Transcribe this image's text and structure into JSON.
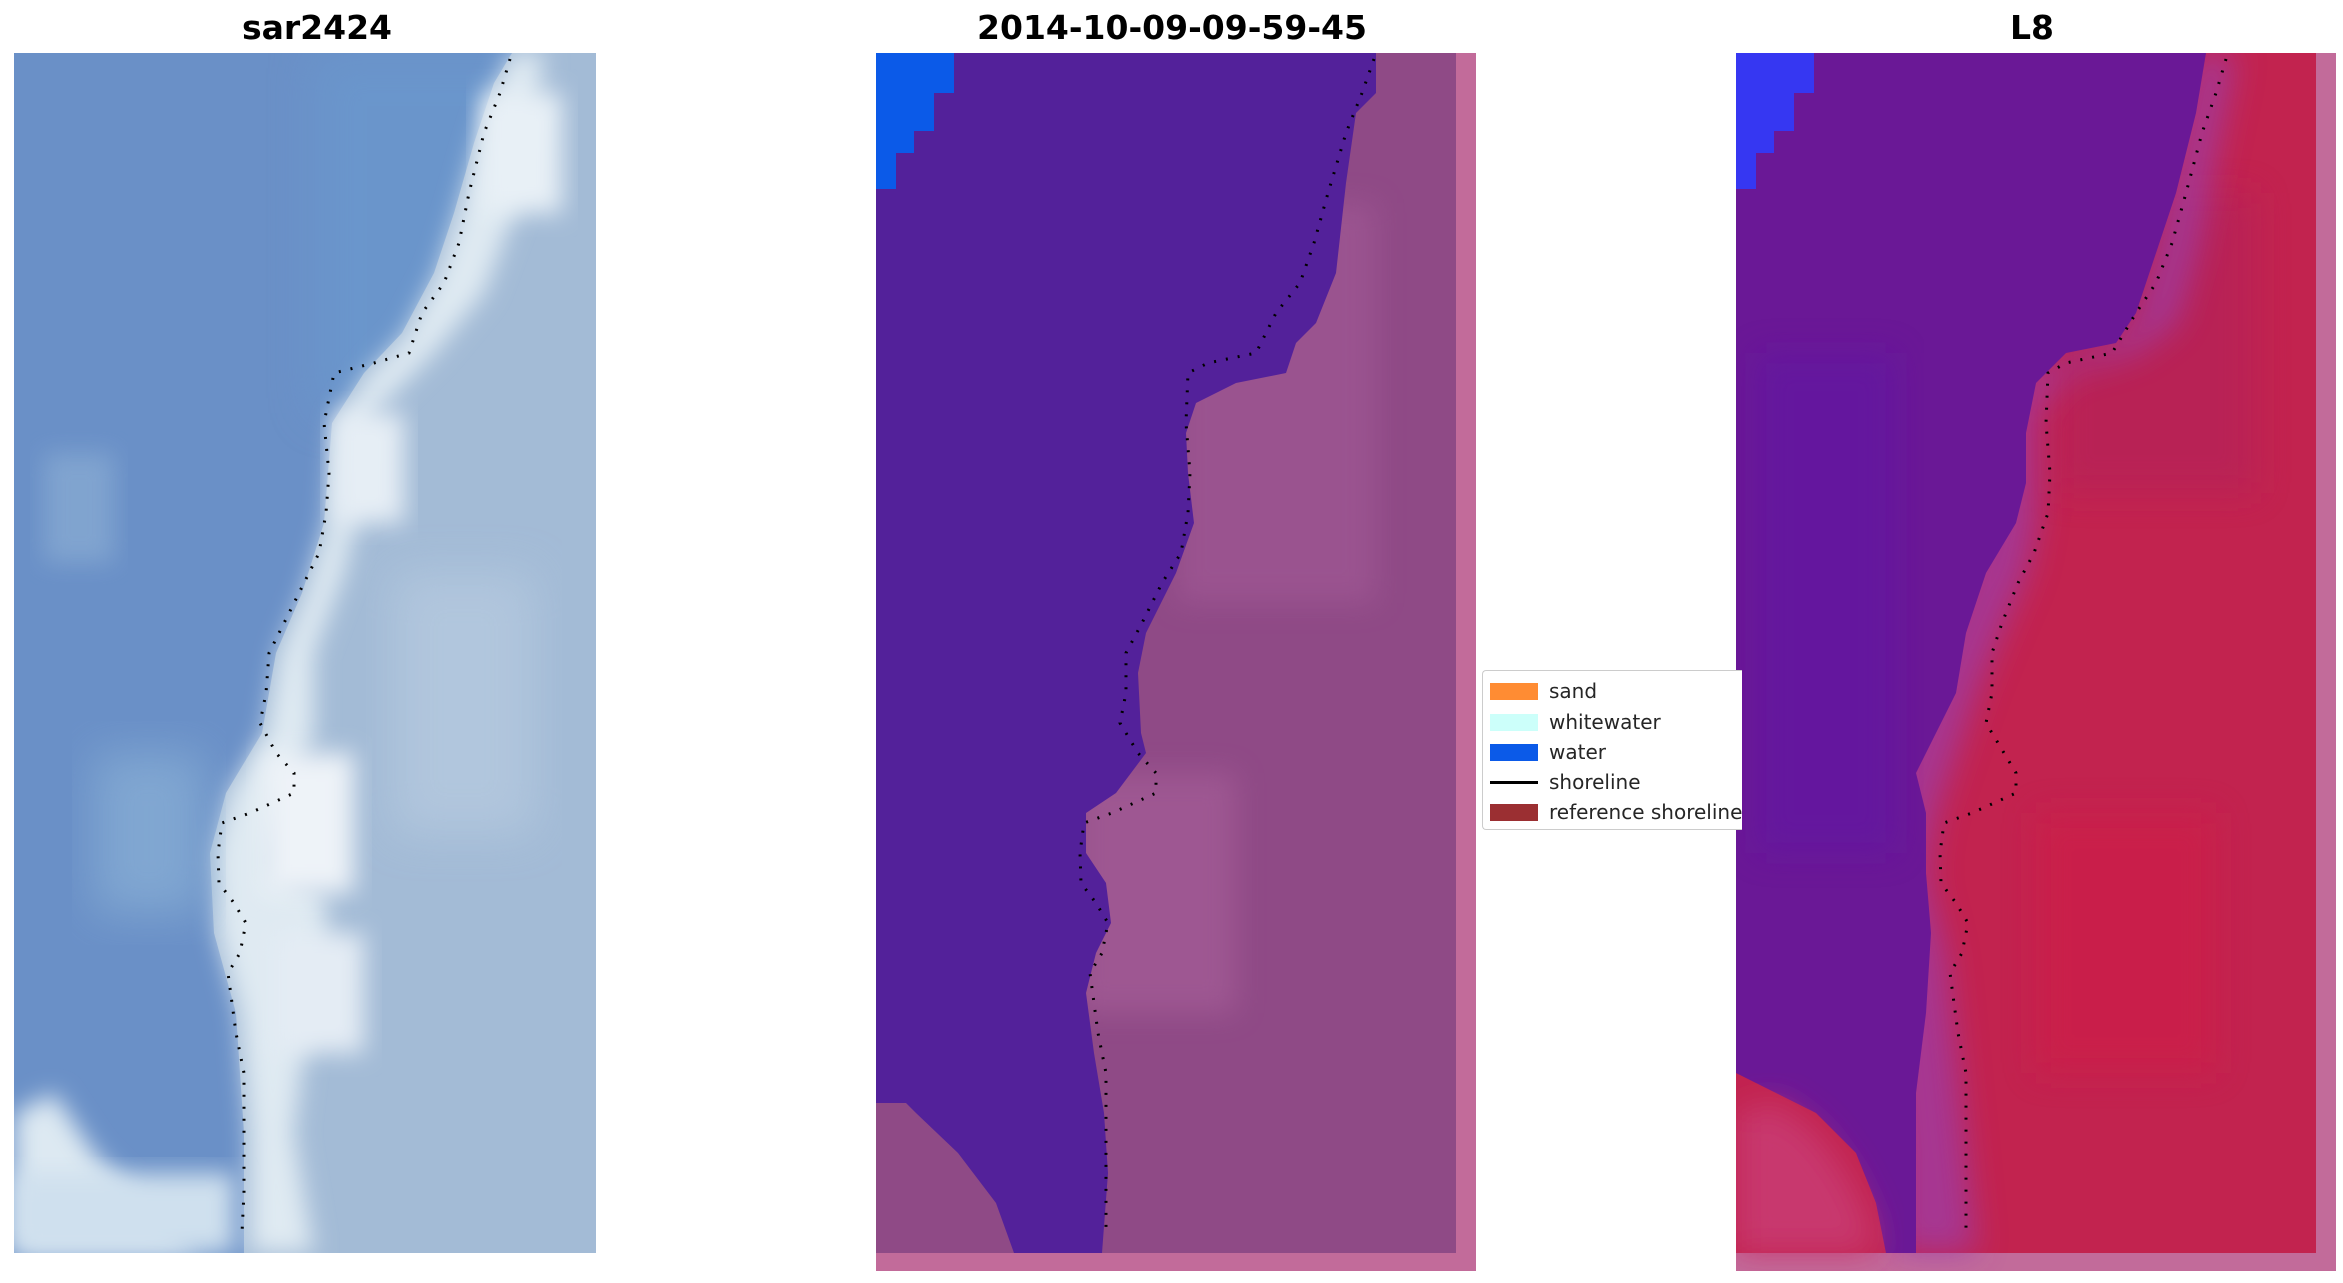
{
  "panels": [
    {
      "title": "sar2424"
    },
    {
      "title": "2014-10-09-09-59-45"
    },
    {
      "title": "L8"
    }
  ],
  "legend": {
    "items": [
      {
        "label": "sand",
        "kind": "patch",
        "color": "#ff8c33"
      },
      {
        "label": "whitewater",
        "kind": "patch",
        "color": "#ccfffa"
      },
      {
        "label": "water",
        "kind": "patch",
        "color": "#0b5ae8"
      },
      {
        "label": "shoreline",
        "kind": "line",
        "color": "#000000"
      },
      {
        "label": "reference shoreline",
        "kind": "patch",
        "color": "#9b2f32"
      }
    ]
  },
  "colors": {
    "sea_rgb": "#6a93c9",
    "surf_rgb": "#d6e4ef",
    "land_rgb": "#a4bcd6",
    "water_class": "#53219a",
    "water_bright": "#0b5ae8",
    "land_class": "#9a4a88",
    "border_class": "#c26b9a",
    "mndwi_water": "#6a1896",
    "mndwi_land": "#c2234f",
    "mndwi_bright": "#3637f2"
  }
}
